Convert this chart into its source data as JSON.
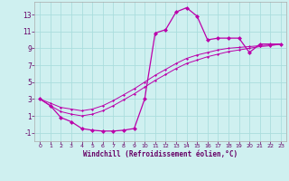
{
  "xlabel": "Windchill (Refroidissement éolien,°C)",
  "bg_color": "#cff0f0",
  "grid_color": "#aadddd",
  "line_color": "#bb00aa",
  "xlim": [
    -0.5,
    23.5
  ],
  "ylim": [
    -2,
    14.5
  ],
  "yticks": [
    -1,
    1,
    3,
    5,
    7,
    9,
    11,
    13
  ],
  "xticks": [
    0,
    1,
    2,
    3,
    4,
    5,
    6,
    7,
    8,
    9,
    10,
    11,
    12,
    13,
    14,
    15,
    16,
    17,
    18,
    19,
    20,
    21,
    22,
    23
  ],
  "hours": [
    0,
    1,
    2,
    3,
    4,
    5,
    6,
    7,
    8,
    9,
    10,
    11,
    12,
    13,
    14,
    15,
    16,
    17,
    18,
    19,
    20,
    21,
    22,
    23
  ],
  "windchill": [
    3.0,
    2.2,
    0.8,
    0.3,
    -0.5,
    -0.7,
    -0.8,
    -0.8,
    -0.7,
    -0.5,
    3.0,
    10.8,
    11.2,
    13.3,
    13.8,
    12.8,
    10.0,
    10.2,
    10.2,
    10.2,
    8.5,
    9.5,
    9.5,
    9.5
  ],
  "temp_line1": [
    3.0,
    2.5,
    2.0,
    1.8,
    1.6,
    1.8,
    2.2,
    2.8,
    3.5,
    4.2,
    5.0,
    5.8,
    6.5,
    7.2,
    7.8,
    8.2,
    8.5,
    8.8,
    9.0,
    9.1,
    9.2,
    9.3,
    9.4,
    9.5
  ],
  "temp_line2": [
    3.0,
    2.2,
    1.5,
    1.2,
    1.0,
    1.2,
    1.6,
    2.2,
    2.9,
    3.6,
    4.4,
    5.2,
    5.9,
    6.6,
    7.2,
    7.6,
    8.0,
    8.3,
    8.6,
    8.8,
    9.0,
    9.2,
    9.3,
    9.5
  ]
}
